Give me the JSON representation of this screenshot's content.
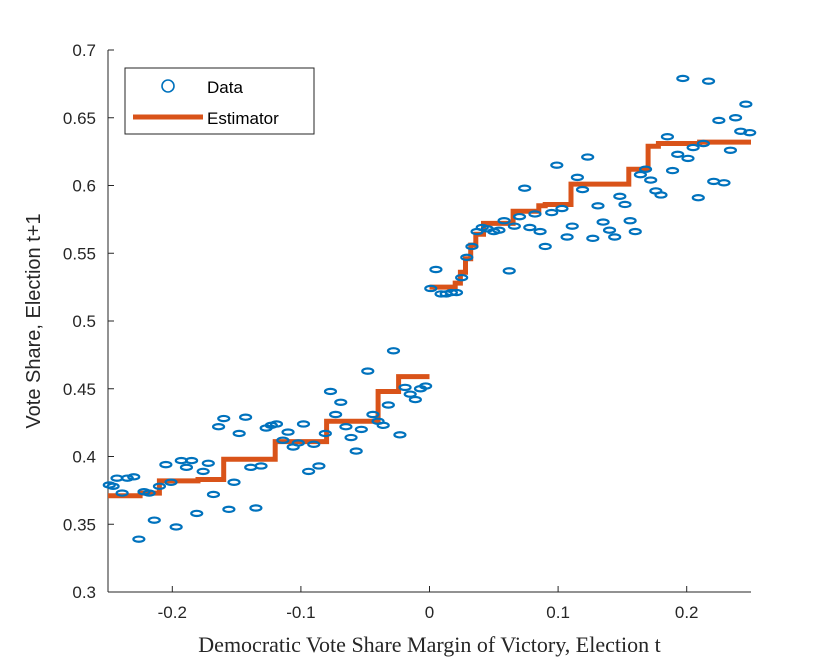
{
  "chart_data": {
    "type": "scatter",
    "title": "",
    "xlabel": "Democratic Vote Share Margin of Victory, Election t",
    "ylabel": "Vote Share, Election t+1",
    "xlim": [
      -0.25,
      0.25
    ],
    "ylim": [
      0.3,
      0.7
    ],
    "xticks": [
      -0.2,
      -0.1,
      0,
      0.1,
      0.2
    ],
    "xtick_labels": [
      "-0.2",
      "-0.1",
      "0",
      "0.1",
      "0.2"
    ],
    "yticks": [
      0.3,
      0.35,
      0.4,
      0.45,
      0.5,
      0.55,
      0.6,
      0.65,
      0.7
    ],
    "ytick_labels": [
      "0.3",
      "0.35",
      "0.4",
      "0.45",
      "0.5",
      "0.55",
      "0.6",
      "0.65",
      "0.7"
    ],
    "grid": false,
    "legend": {
      "position": "top-left",
      "entries": [
        {
          "label": "Data",
          "style": "marker"
        },
        {
          "label": "Estimator",
          "style": "line"
        }
      ]
    },
    "colors": {
      "data": "#0072BD",
      "estimator": "#D95319",
      "axis": "#262626"
    },
    "series": [
      {
        "name": "Data",
        "type": "scatter",
        "x": [
          -0.249,
          -0.246,
          -0.243,
          -0.239,
          -0.235,
          -0.23,
          -0.226,
          -0.222,
          -0.218,
          -0.214,
          -0.21,
          -0.205,
          -0.201,
          -0.197,
          -0.193,
          -0.189,
          -0.185,
          -0.181,
          -0.176,
          -0.172,
          -0.168,
          -0.164,
          -0.16,
          -0.156,
          -0.152,
          -0.148,
          -0.143,
          -0.139,
          -0.135,
          -0.131,
          -0.127,
          -0.123,
          -0.119,
          -0.114,
          -0.11,
          -0.106,
          -0.102,
          -0.098,
          -0.094,
          -0.09,
          -0.086,
          -0.081,
          -0.077,
          -0.073,
          -0.069,
          -0.065,
          -0.061,
          -0.057,
          -0.053,
          -0.048,
          -0.044,
          -0.04,
          -0.036,
          -0.032,
          -0.028,
          -0.023,
          -0.019,
          -0.015,
          -0.011,
          -0.007,
          -0.003,
          0.001,
          0.005,
          0.009,
          0.013,
          0.017,
          0.021,
          0.025,
          0.029,
          0.033,
          0.037,
          0.041,
          0.045,
          0.05,
          0.054,
          0.058,
          0.062,
          0.066,
          0.07,
          0.074,
          0.078,
          0.082,
          0.086,
          0.09,
          0.095,
          0.099,
          0.103,
          0.107,
          0.111,
          0.115,
          0.119,
          0.123,
          0.127,
          0.131,
          0.135,
          0.14,
          0.144,
          0.148,
          0.152,
          0.156,
          0.16,
          0.164,
          0.168,
          0.172,
          0.176,
          0.18,
          0.185,
          0.189,
          0.193,
          0.197,
          0.201,
          0.205,
          0.209,
          0.213,
          0.217,
          0.221,
          0.225,
          0.229,
          0.234,
          0.238,
          0.242,
          0.246,
          0.249
        ],
        "y": [
          0.379,
          0.378,
          0.384,
          0.373,
          0.384,
          0.385,
          0.339,
          0.374,
          0.373,
          0.353,
          0.378,
          0.394,
          0.381,
          0.348,
          0.397,
          0.392,
          0.397,
          0.358,
          0.389,
          0.395,
          0.372,
          0.422,
          0.428,
          0.361,
          0.381,
          0.417,
          0.429,
          0.392,
          0.362,
          0.393,
          0.421,
          0.423,
          0.424,
          0.412,
          0.418,
          0.407,
          0.41,
          0.424,
          0.389,
          0.409,
          0.393,
          0.417,
          0.448,
          0.431,
          0.44,
          0.422,
          0.414,
          0.404,
          0.42,
          0.463,
          0.431,
          0.426,
          0.423,
          0.438,
          0.478,
          0.416,
          0.451,
          0.446,
          0.442,
          0.45,
          0.452,
          0.524,
          0.538,
          0.52,
          0.52,
          0.521,
          0.521,
          0.532,
          0.547,
          0.555,
          0.566,
          0.569,
          0.568,
          0.566,
          0.567,
          0.574,
          0.537,
          0.57,
          0.577,
          0.598,
          0.569,
          0.579,
          0.566,
          0.555,
          0.58,
          0.615,
          0.583,
          0.562,
          0.57,
          0.606,
          0.597,
          0.621,
          0.561,
          0.585,
          0.573,
          0.567,
          0.562,
          0.592,
          0.586,
          0.574,
          0.566,
          0.608,
          0.612,
          0.604,
          0.596,
          0.593,
          0.636,
          0.611,
          0.623,
          0.679,
          0.62,
          0.628,
          0.591,
          0.631,
          0.677,
          0.603,
          0.648,
          0.602,
          0.626,
          0.65,
          0.64,
          0.66,
          0.639
        ]
      },
      {
        "name": "Estimator",
        "type": "step",
        "x": [
          -0.25,
          -0.225,
          -0.225,
          -0.21,
          -0.21,
          -0.18,
          -0.18,
          -0.16,
          -0.16,
          -0.12,
          -0.12,
          -0.08,
          -0.08,
          -0.04,
          -0.04,
          -0.024,
          -0.024,
          0
        ],
        "y": [
          0.371,
          0.371,
          0.373,
          0.373,
          0.382,
          0.382,
          0.383,
          0.383,
          0.398,
          0.398,
          0.411,
          0.411,
          0.426,
          0.426,
          0.448,
          0.448,
          0.459,
          0.459
        ]
      },
      {
        "name": "Estimator",
        "type": "step",
        "x": [
          0,
          0.02,
          0.02,
          0.024,
          0.024,
          0.028,
          0.028,
          0.032,
          0.032,
          0.036,
          0.036,
          0.042,
          0.042,
          0.065,
          0.065,
          0.085,
          0.085,
          0.09,
          0.09,
          0.11,
          0.11,
          0.155,
          0.155,
          0.17,
          0.17,
          0.178,
          0.178,
          0.21,
          0.21,
          0.25
        ],
        "y": [
          0.525,
          0.525,
          0.528,
          0.528,
          0.536,
          0.536,
          0.546,
          0.546,
          0.556,
          0.556,
          0.564,
          0.564,
          0.572,
          0.572,
          0.581,
          0.581,
          0.585,
          0.585,
          0.586,
          0.586,
          0.601,
          0.601,
          0.612,
          0.612,
          0.629,
          0.629,
          0.631,
          0.631,
          0.632,
          0.632
        ]
      }
    ]
  }
}
